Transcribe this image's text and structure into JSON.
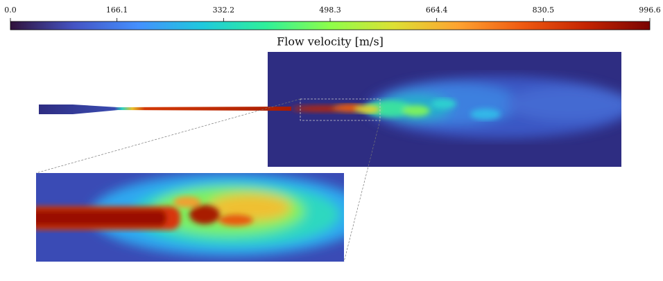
{
  "colorbar": {
    "label": "Flow velocity [m/s]",
    "lim": [
      0,
      996.6
    ],
    "ticks": [
      {
        "value": 0,
        "label": "0.0"
      },
      166.1,
      332.2,
      498.3,
      664.4,
      830.5,
      996.6
    ]
  }
}
